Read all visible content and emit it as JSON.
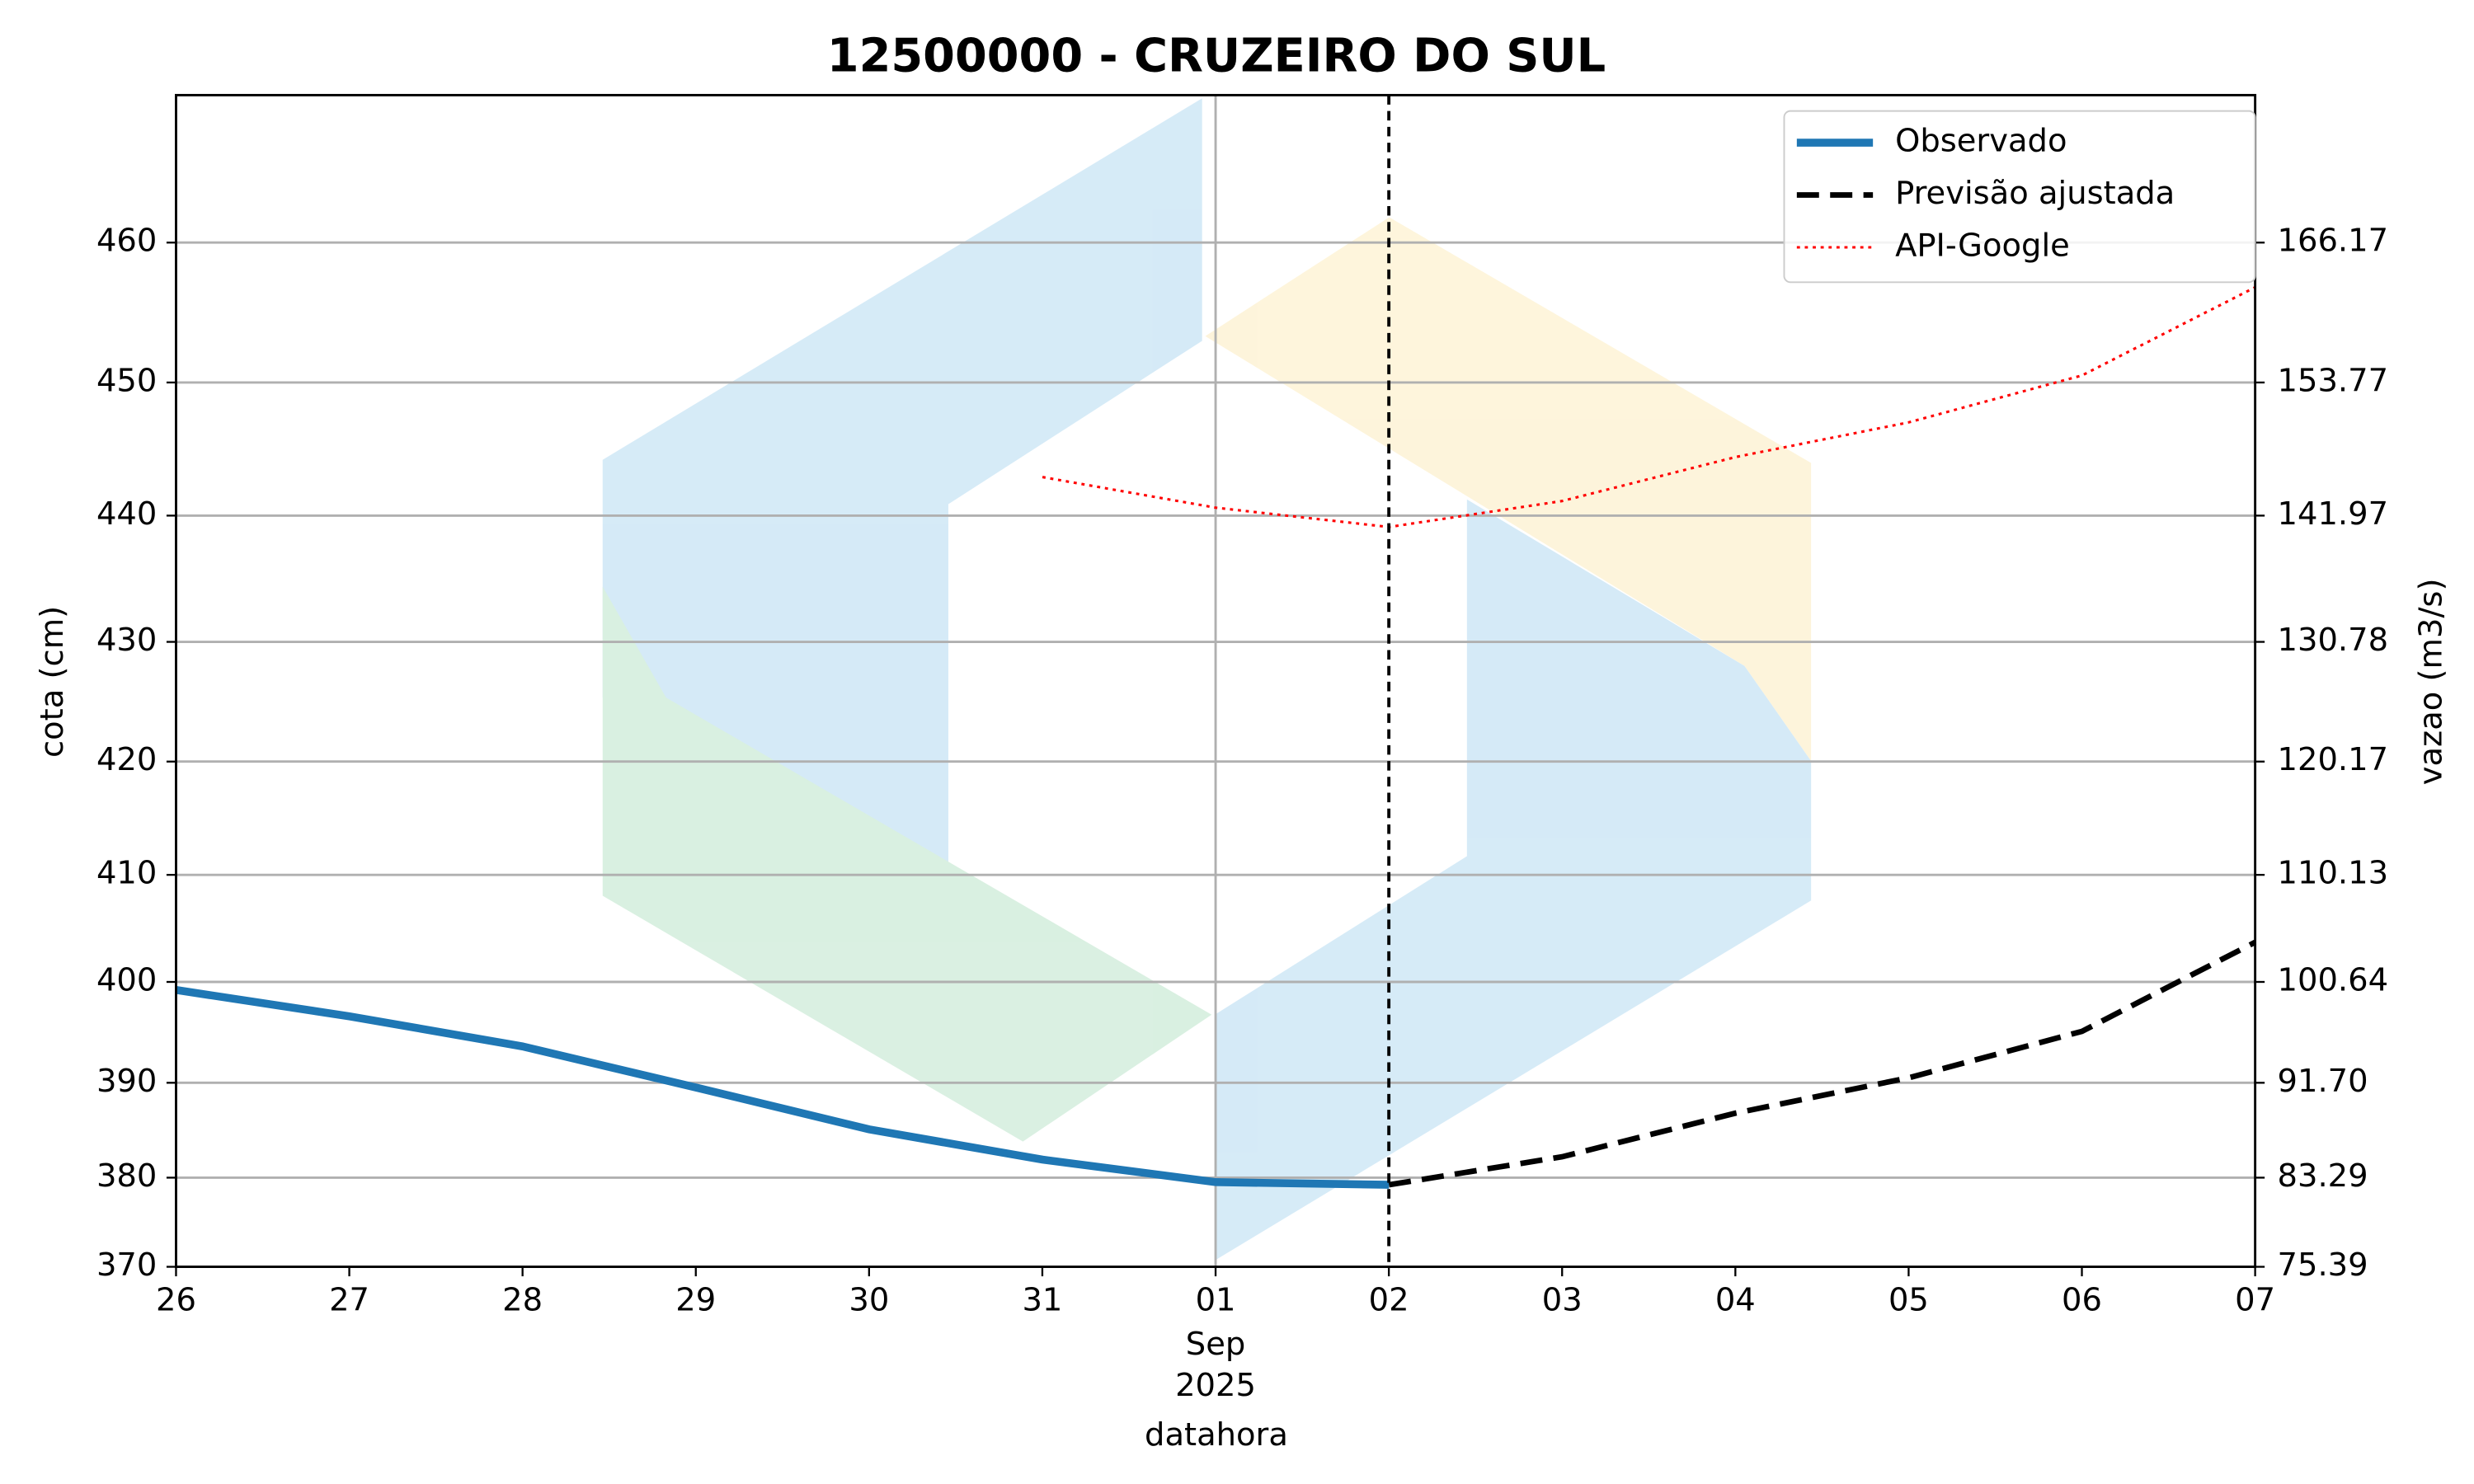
{
  "chart_data": {
    "type": "line",
    "title": "12500000 - CRUZEIRO DO SUL",
    "x_label": "datahora",
    "y_label": "cota (cm)",
    "y2_label": "vazao (m3/s)",
    "x": [
      "2025-08-26",
      "2025-08-27",
      "2025-08-28",
      "2025-08-29",
      "2025-08-30",
      "2025-08-31",
      "2025-09-01",
      "2025-09-02",
      "2025-09-03",
      "2025-09-04",
      "2025-09-05",
      "2025-09-06",
      "2025-09-07"
    ],
    "xlim": [
      "2025-08-26",
      "2025-09-07"
    ],
    "xticks": [
      {
        "value": "2025-08-26",
        "label": "26"
      },
      {
        "value": "2025-08-27",
        "label": "27"
      },
      {
        "value": "2025-08-28",
        "label": "28"
      },
      {
        "value": "2025-08-29",
        "label": "29"
      },
      {
        "value": "2025-08-30",
        "label": "30"
      },
      {
        "value": "2025-08-31",
        "label": "31"
      },
      {
        "value": "2025-09-01",
        "label": "01"
      },
      {
        "value": "2025-09-02",
        "label": "02"
      },
      {
        "value": "2025-09-03",
        "label": "03"
      },
      {
        "value": "2025-09-04",
        "label": "04"
      },
      {
        "value": "2025-09-05",
        "label": "05"
      },
      {
        "value": "2025-09-06",
        "label": "06"
      },
      {
        "value": "2025-09-07",
        "label": "07"
      }
    ],
    "xtick_sublabel": {
      "tick": 6,
      "lines": [
        "Sep",
        "2025"
      ]
    },
    "xgrid_tick": 6,
    "vline": "2025-09-02",
    "ylim": [
      370,
      470.6
    ],
    "yticks": [
      370,
      380,
      390,
      400,
      410,
      420,
      430,
      440,
      450,
      460
    ],
    "y2lim": [
      75.39,
      179.24
    ],
    "y2ticks": [
      75.39,
      83.29,
      {
        "value": 91.7,
        "label": "91.70"
      },
      100.64,
      110.13,
      120.17,
      130.78,
      141.97,
      153.77,
      166.17
    ],
    "grid": true,
    "legend": "upper right",
    "series": [
      {
        "name": "Observado",
        "color": "#1f77b4",
        "style": "solid",
        "values": [
          399.2,
          396.6,
          393.6,
          389.5,
          385.1,
          381.9,
          379.5,
          379.2,
          null,
          null,
          null,
          null,
          null
        ]
      },
      {
        "name": "Previsão ajustada",
        "color": "#000000",
        "style": "dashed",
        "values": [
          null,
          null,
          null,
          null,
          null,
          null,
          null,
          379.2,
          382.2,
          386.8,
          390.5,
          395.1,
          403.7
        ]
      },
      {
        "name": "API-Google",
        "color": "#ff0000",
        "style": "dotted",
        "values": [
          null,
          null,
          null,
          null,
          null,
          442.9,
          440.6,
          439.1,
          441.1,
          444.4,
          447.0,
          450.5,
          456.8
        ]
      }
    ]
  }
}
